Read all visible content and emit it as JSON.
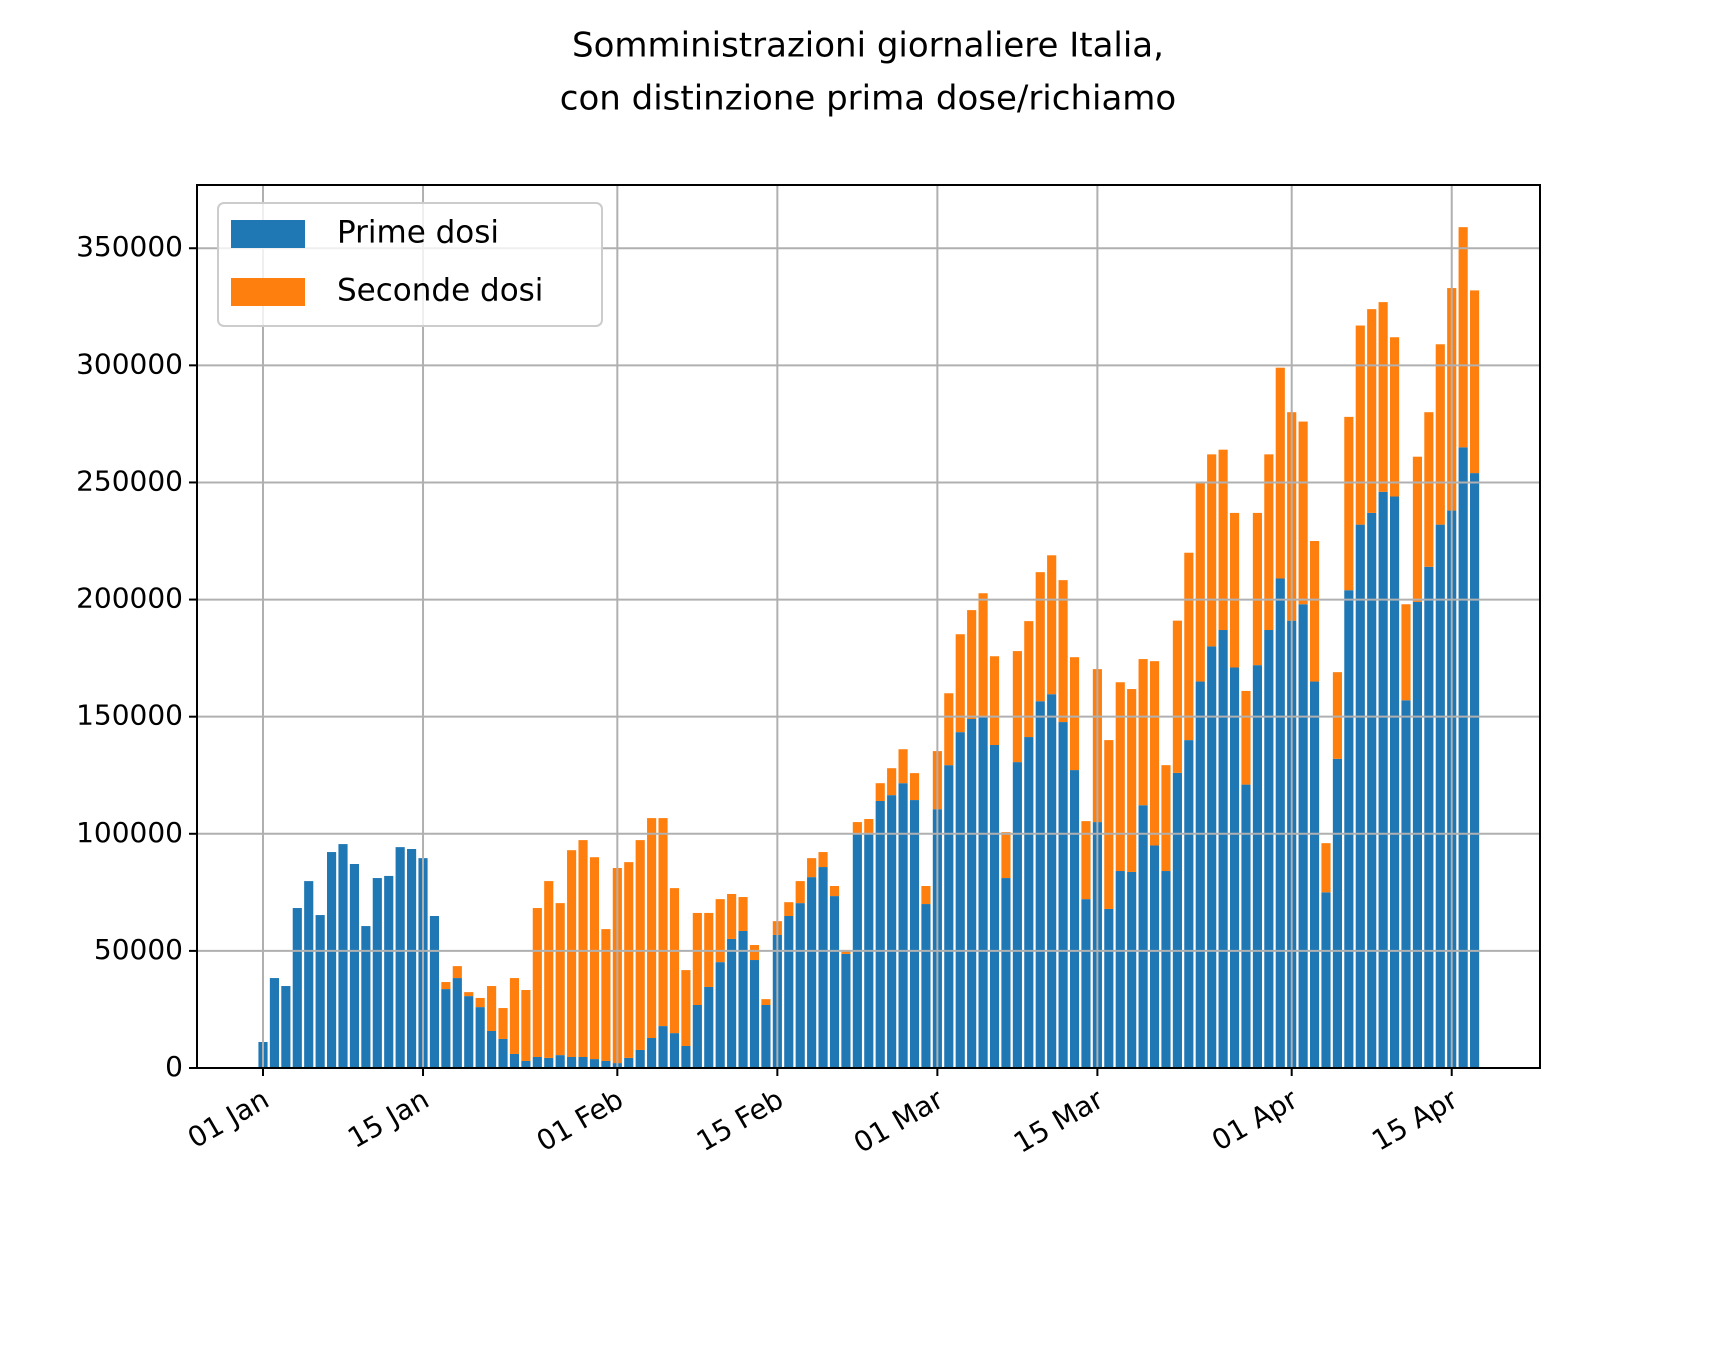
{
  "chart_data": {
    "type": "stacked_bar",
    "title": [
      "Somministrazioni giornaliere Italia,",
      "con distinzione prima dose/richiamo"
    ],
    "x": [
      "01 Jan",
      "02 Jan",
      "03 Jan",
      "04 Jan",
      "05 Jan",
      "06 Jan",
      "07 Jan",
      "08 Jan",
      "09 Jan",
      "10 Jan",
      "11 Jan",
      "12 Jan",
      "13 Jan",
      "14 Jan",
      "15 Jan",
      "16 Jan",
      "17 Jan",
      "18 Jan",
      "19 Jan",
      "20 Jan",
      "21 Jan",
      "22 Jan",
      "23 Jan",
      "24 Jan",
      "25 Jan",
      "26 Jan",
      "27 Jan",
      "28 Jan",
      "29 Jan",
      "30 Jan",
      "31 Jan",
      "01 Feb",
      "02 Feb",
      "03 Feb",
      "04 Feb",
      "05 Feb",
      "06 Feb",
      "07 Feb",
      "08 Feb",
      "09 Feb",
      "10 Feb",
      "11 Feb",
      "12 Feb",
      "13 Feb",
      "14 Feb",
      "15 Feb",
      "16 Feb",
      "17 Feb",
      "18 Feb",
      "19 Feb",
      "20 Feb",
      "21 Feb",
      "22 Feb",
      "23 Feb",
      "24 Feb",
      "25 Feb",
      "26 Feb",
      "27 Feb",
      "28 Feb",
      "01 Mar",
      "02 Mar",
      "03 Mar",
      "04 Mar",
      "05 Mar",
      "06 Mar",
      "07 Mar",
      "08 Mar",
      "09 Mar",
      "10 Mar",
      "11 Mar",
      "12 Mar",
      "13 Mar",
      "14 Mar",
      "15 Mar",
      "16 Mar",
      "17 Mar",
      "18 Mar",
      "19 Mar",
      "20 Mar",
      "21 Mar",
      "22 Mar",
      "23 Mar",
      "24 Mar",
      "25 Mar",
      "26 Mar",
      "27 Mar",
      "28 Mar",
      "29 Mar",
      "30 Mar",
      "31 Mar",
      "01 Apr",
      "02 Apr",
      "03 Apr",
      "04 Apr",
      "05 Apr",
      "06 Apr",
      "07 Apr",
      "08 Apr",
      "09 Apr",
      "10 Apr",
      "11 Apr",
      "12 Apr",
      "13 Apr",
      "14 Apr",
      "15 Apr",
      "16 Apr",
      "17 Apr"
    ],
    "series": [
      {
        "name": "Prime dosi",
        "color": "#1f77b4",
        "values": [
          11100,
          38400,
          35000,
          68300,
          79800,
          65300,
          92200,
          95600,
          87100,
          60600,
          81100,
          82000,
          94300,
          93500,
          89600,
          64900,
          33700,
          38400,
          30700,
          26000,
          15800,
          12400,
          6000,
          3000,
          4700,
          4300,
          5500,
          4700,
          4700,
          3800,
          3000,
          2100,
          4300,
          7700,
          12800,
          17900,
          14900,
          9400,
          26900,
          34600,
          45200,
          55100,
          58500,
          46100,
          26900,
          56800,
          64900,
          70400,
          81500,
          85800,
          73400,
          48700,
          99900,
          100300,
          114000,
          116500,
          121600,
          114400,
          70000,
          110500,
          129300,
          143400,
          149000,
          150200,
          137900,
          81100,
          130600,
          141300,
          156600,
          159600,
          147700,
          127200,
          72100,
          105000,
          67900,
          84100,
          83700,
          112200,
          95000,
          84100,
          126000,
          140000,
          165000,
          180000,
          187000,
          171000,
          121000,
          172000,
          187000,
          209000,
          191000,
          198000,
          165000,
          75000,
          132000,
          204000,
          232000,
          237000,
          246000,
          244000,
          157000,
          199000,
          214000,
          232000,
          238000,
          265000,
          254000
        ]
      },
      {
        "name": "Seconde dosi",
        "color": "#ff7f0e",
        "values": [
          0,
          0,
          0,
          0,
          0,
          0,
          0,
          0,
          0,
          0,
          0,
          0,
          0,
          0,
          0,
          0,
          3000,
          5100,
          1700,
          3900,
          19200,
          13200,
          32400,
          30300,
          63600,
          75500,
          64900,
          88300,
          92600,
          86200,
          56300,
          83300,
          83600,
          89600,
          93900,
          88800,
          61900,
          32400,
          39300,
          31600,
          26900,
          19200,
          14500,
          6400,
          2500,
          5900,
          5900,
          9400,
          8100,
          6400,
          4300,
          1700,
          5100,
          6000,
          7600,
          11500,
          14500,
          11500,
          7700,
          24800,
          30700,
          41800,
          46500,
          52500,
          37900,
          19600,
          47400,
          49500,
          55100,
          59300,
          60600,
          48200,
          33300,
          65300,
          72100,
          80600,
          78100,
          62400,
          78700,
          45200,
          65000,
          80000,
          85000,
          82000,
          77000,
          66000,
          40000,
          65000,
          75000,
          90000,
          89000,
          78000,
          60000,
          21000,
          37000,
          74000,
          85000,
          87000,
          81000,
          68000,
          41000,
          62000,
          66000,
          77000,
          95000,
          94000,
          78000
        ]
      }
    ],
    "xticks": [
      "01 Jan",
      "15 Jan",
      "01 Feb",
      "15 Feb",
      "01 Mar",
      "15 Mar",
      "01 Apr",
      "15 Apr"
    ],
    "ylim": [
      0,
      377000
    ],
    "yticks": [
      0,
      50000,
      100000,
      150000,
      200000,
      250000,
      300000,
      350000
    ],
    "grid": true,
    "legend": "upper left"
  }
}
